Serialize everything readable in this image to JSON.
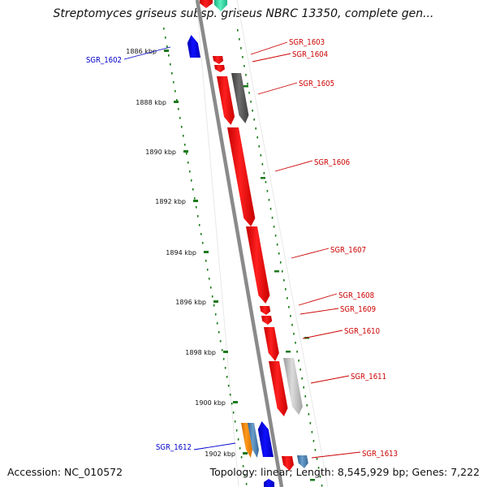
{
  "title": "Streptomyces griseus subsp. griseus NBRC 13350, complete gen...",
  "accession": "Accession: NC_010572",
  "summary": "Topology: linear; Length: 8,545,929 bp; Genes: 7,222",
  "axis": {
    "ticks": [
      {
        "label": "1886 kbp"
      },
      {
        "label": "1888 kbp"
      },
      {
        "label": "1890 kbp"
      },
      {
        "label": "1892 kbp"
      },
      {
        "label": "1894 kbp"
      },
      {
        "label": "1896 kbp"
      },
      {
        "label": "1898 kbp"
      },
      {
        "label": "1900 kbp"
      },
      {
        "label": "1902 kbp"
      }
    ]
  },
  "genes": [
    {
      "name": "SGR_1602",
      "strand": "minus",
      "color": "#0000cc"
    },
    {
      "name": "SGR_1603",
      "strand": "plus",
      "color": "#cc0000"
    },
    {
      "name": "SGR_1604",
      "strand": "plus",
      "color": "#cc0000"
    },
    {
      "name": "SGR_1605",
      "strand": "plus",
      "color": "#cc0000"
    },
    {
      "name": "SGR_1606",
      "strand": "plus",
      "color": "#cc0000"
    },
    {
      "name": "SGR_1607",
      "strand": "plus",
      "color": "#cc0000"
    },
    {
      "name": "SGR_1608",
      "strand": "plus",
      "color": "#cc0000"
    },
    {
      "name": "SGR_1609",
      "strand": "plus",
      "color": "#cc0000"
    },
    {
      "name": "SGR_1610",
      "strand": "plus",
      "color": "#cc0000"
    },
    {
      "name": "SGR_1611",
      "strand": "plus",
      "color": "#cc0000"
    },
    {
      "name": "SGR_1612",
      "strand": "minus",
      "color": "#0000cc"
    },
    {
      "name": "SGR_1613",
      "strand": "plus",
      "color": "#cc0000"
    }
  ],
  "colors": {
    "plus_strand_gene": "#ff0000",
    "minus_strand_gene": "#0000ff",
    "pseudo_gene_dark": "#555555",
    "pseudo_gene_light": "#bbbbbb",
    "orange_gene": "#ff8c00",
    "steelblue_gene": "#4682b4",
    "teal_gene": "#2fd5a6",
    "axis_dots": "#1a7a1a",
    "backbone": "#888888"
  }
}
